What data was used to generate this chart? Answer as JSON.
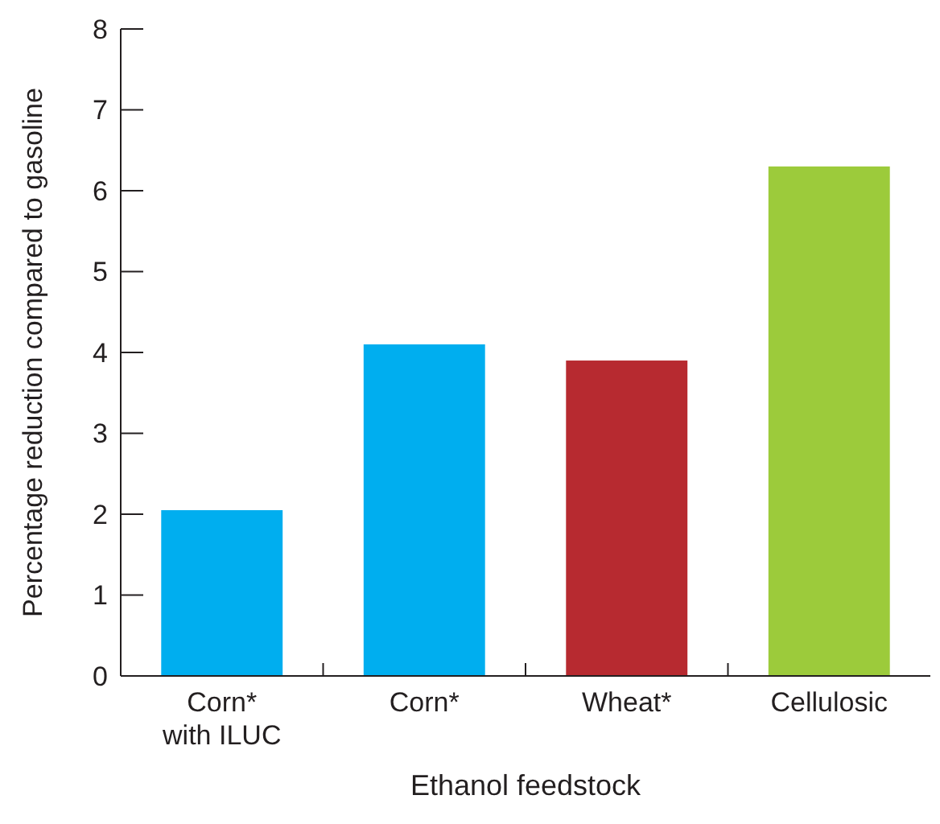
{
  "chart_data": {
    "type": "bar",
    "xlabel": "Ethanol feedstock",
    "ylabel": "Percentage reduction compared to gasoline",
    "categories": [
      "Corn*\nwith ILUC",
      "Corn*",
      "Wheat*",
      "Cellulosic"
    ],
    "values": [
      2.05,
      4.1,
      3.9,
      6.3
    ],
    "colors": [
      "#00aeef",
      "#00aeef",
      "#b72a30",
      "#9ccb3b"
    ],
    "ylim": [
      0,
      8
    ],
    "yticks": [
      0,
      1,
      2,
      3,
      4,
      5,
      6,
      7,
      8
    ],
    "grid": false
  }
}
